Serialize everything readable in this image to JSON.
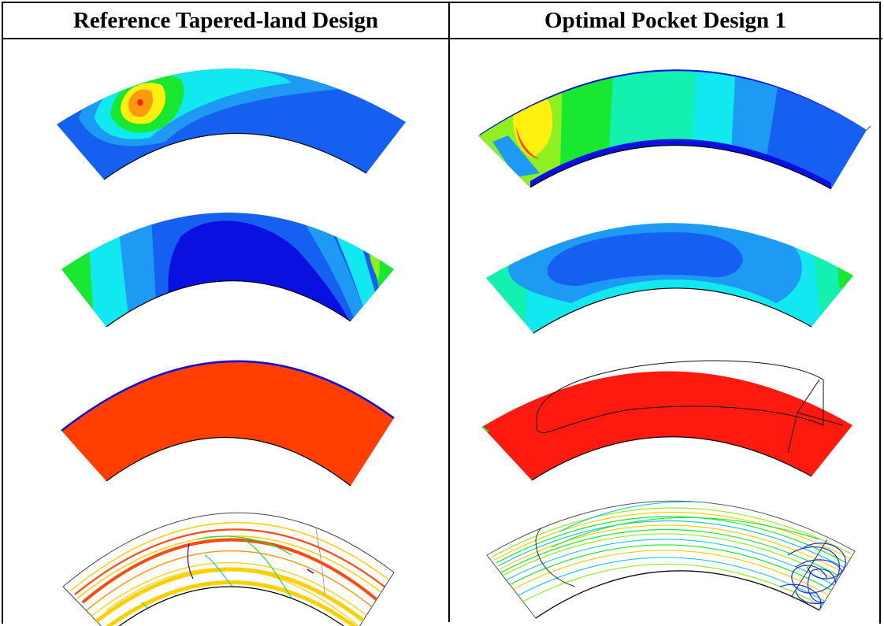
{
  "headers": {
    "left": "Reference Tapered-land Design",
    "right": "Optimal Pocket Design 1"
  },
  "colors": {
    "dark_blue": "#0a10e0",
    "blue": "#1560f0",
    "mid_blue": "#1e9af5",
    "cyan": "#12e8f0",
    "cyan_green": "#14f0b0",
    "green": "#18e830",
    "light_green": "#8ef020",
    "yellow": "#fff010",
    "orange": "#ff9a10",
    "red_orange": "#ff4a10",
    "red": "#ff1a10"
  }
}
